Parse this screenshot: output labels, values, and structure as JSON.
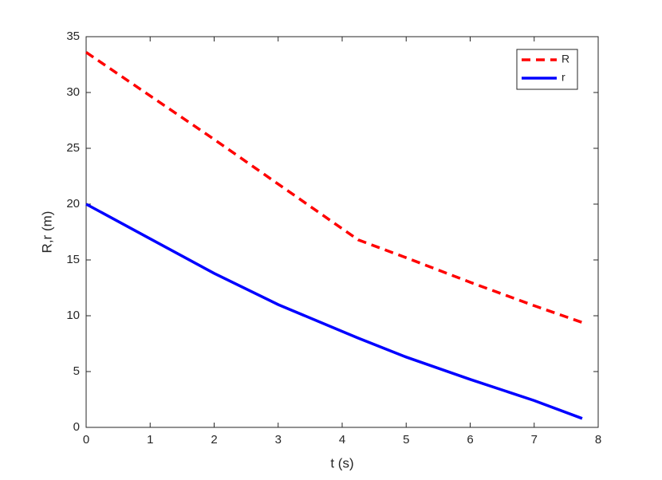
{
  "chart_data": {
    "type": "line",
    "xlabel": "t (s)",
    "ylabel": "R,r (m)",
    "x": [
      0,
      1,
      2,
      3,
      4,
      4.25,
      5,
      6,
      7,
      7.75
    ],
    "series": [
      {
        "name": "R",
        "color": "#ff0000",
        "dash": true,
        "values": [
          33.6,
          29.7,
          25.8,
          21.8,
          17.8,
          16.8,
          15.2,
          13.0,
          10.9,
          9.4
        ]
      },
      {
        "name": "r",
        "color": "#0000ff",
        "dash": false,
        "values": [
          20,
          16.9,
          13.8,
          11.0,
          8.6,
          8.0,
          6.3,
          4.3,
          2.4,
          0.8
        ]
      }
    ],
    "xlim": [
      0,
      8
    ],
    "xticks": [
      0,
      1,
      2,
      3,
      4,
      5,
      6,
      7,
      8
    ],
    "ylim": [
      0,
      35
    ],
    "yticks": [
      0,
      5,
      10,
      15,
      20,
      25,
      30,
      35
    ],
    "grid": false,
    "legend": "top-right"
  }
}
